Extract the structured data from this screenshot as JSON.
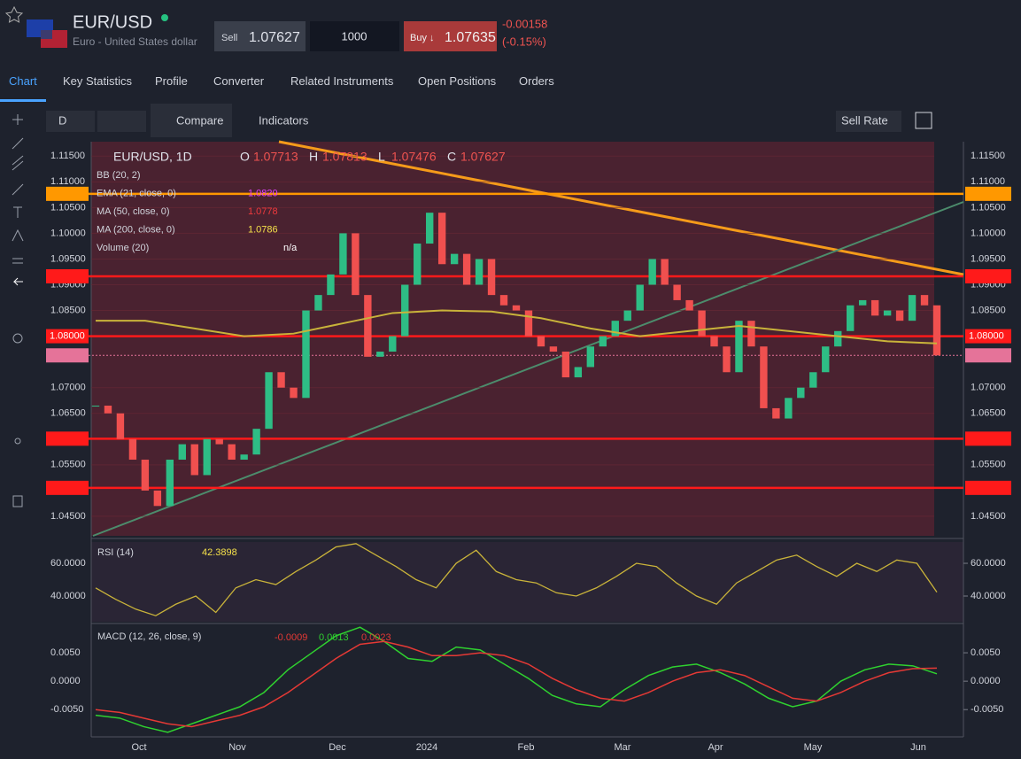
{
  "header": {
    "symbol": "EUR/USD",
    "description": "Euro - United States dollar",
    "sell_label": "Sell",
    "sell_price": 1.07627,
    "quantity": 1000,
    "buy_label": "Buy ↓",
    "buy_price": 1.07635,
    "change": -0.00158,
    "change_percent": "(-0.15%)"
  },
  "tabs": [
    "Chart",
    "Key Statistics",
    "Profile",
    "Converter",
    "Related Instruments",
    "Open Positions",
    "Orders"
  ],
  "toolbar": {
    "interval": "D",
    "compare": "Compare",
    "indicators": "Indicators",
    "rate": "Sell Rate"
  },
  "chart_data": [
    {
      "type": "candlestick",
      "title": "EUR/USD, 1D",
      "ohlc": [
        {
          "label": "O",
          "value": 1.07713
        },
        {
          "label": "H",
          "value": 1.07813
        },
        {
          "label": "L",
          "value": 1.07476
        },
        {
          "label": "C",
          "value": 1.07627
        }
      ],
      "indicators": [
        {
          "name": "BB (20, 2)"
        },
        {
          "name": "EMA (21, close, 0)",
          "value": {
            "value": 1.082,
            "label": "1.0820"
          },
          "color": "#e040fb"
        },
        {
          "name": "MA (50, close, 0)",
          "value": 1.0778,
          "color": "#f0393d"
        },
        {
          "name": "MA (200, close, 0)",
          "value": 1.0786,
          "color": "#f5e14a"
        },
        {
          "name": "Volume (20)",
          "value": "n/a",
          "color": "#ffffff"
        }
      ],
      "xtick_labels": [
        "Oct",
        "Nov",
        "Dec",
        "2024",
        "Feb",
        "Mar",
        "Apr",
        "May",
        "Jun"
      ],
      "values": [
        1.0665,
        1.065,
        1.06,
        1.056,
        1.05,
        1.047,
        1.056,
        1.059,
        1.053,
        1.06,
        1.059,
        1.056,
        1.057,
        1.062,
        1.073,
        1.07,
        1.068,
        1.085,
        1.088,
        1.092,
        1.1,
        1.088,
        1.076,
        1.077,
        1.08,
        1.09,
        1.098,
        1.104,
        1.094,
        1.096,
        1.09,
        1.095,
        1.088,
        1.086,
        1.085,
        1.08,
        1.078,
        1.077,
        1.072,
        1.074,
        1.078,
        1.08,
        1.083,
        1.085,
        1.09,
        1.095,
        1.09,
        1.087,
        1.085,
        1.08,
        1.078,
        1.073,
        1.083,
        1.078,
        1.066,
        1.064,
        1.068,
        1.07,
        1.073,
        1.078,
        1.081,
        1.086,
        1.087,
        1.084,
        1.085,
        1.083,
        1.088,
        1.086,
        1.07627
      ],
      "ma200": [
        1.083,
        1.083,
        1.0815,
        1.08,
        1.0805,
        1.0825,
        1.0845,
        1.085,
        1.0848,
        1.0835,
        1.0815,
        1.08,
        1.081,
        1.082,
        1.081,
        1.08,
        1.079,
        1.0786
      ],
      "ylim": [
        1.0412,
        1.1178
      ],
      "yticks": [
        {
          "value": 1.115,
          "label": "1.11500"
        },
        {
          "value": 1.11,
          "label": "1.11000"
        },
        {
          "value": 1.105,
          "label": "1.10500"
        },
        {
          "value": 1.1,
          "label": "1.10000"
        },
        {
          "value": 1.095,
          "label": "1.09500"
        },
        {
          "value": 1.09,
          "label": "1.09000"
        },
        {
          "value": 1.085,
          "label": "1.08500"
        },
        {
          "value": 1.07,
          "label": "1.07000"
        },
        {
          "value": 1.065,
          "label": "1.06500"
        },
        {
          "value": 1.055,
          "label": "1.05500"
        },
        {
          "value": 1.045,
          "label": "1.04500"
        }
      ],
      "levels": [
        {
          "value": 1.10767,
          "color": "#ff9800"
        },
        {
          "value": 1.09164,
          "color": "#ff1a1a"
        },
        {
          "value": 1.08,
          "label": "1.08000",
          "color": "#ff1a1a"
        },
        {
          "value": 1.07627,
          "color": "#e57399"
        },
        {
          "value": 1.06008,
          "color": "#ff1a1a"
        },
        {
          "value": 1.05052,
          "color": "#ff1a1a"
        }
      ]
    },
    {
      "type": "line",
      "title": "RSI (14)",
      "value": 42.3898,
      "color": "#c9b33a",
      "values": [
        45,
        38,
        32,
        28,
        35,
        40,
        30,
        45,
        50,
        47,
        55,
        62,
        70,
        72,
        65,
        58,
        50,
        45,
        60,
        68,
        55,
        50,
        48,
        42,
        40,
        45,
        52,
        60,
        58,
        48,
        40,
        35,
        48,
        55,
        62,
        65,
        58,
        52,
        60,
        55,
        62,
        60,
        42.3898
      ],
      "ylim": [
        25.4,
        73
      ],
      "yticks": [
        {
          "value": 60,
          "label": "60.0000"
        },
        {
          "value": 40,
          "label": "40.0000"
        }
      ]
    },
    {
      "type": "line",
      "title": "MACD (12, 26, close, 9)",
      "series": [
        {
          "name": "-0.0009",
          "color": "#e53935"
        },
        {
          "name": "0.0013",
          "color": "#2fd12f",
          "values": [
            -0.006,
            -0.0065,
            -0.008,
            -0.009,
            -0.0075,
            -0.006,
            -0.0045,
            -0.002,
            0.002,
            0.005,
            0.008,
            0.0095,
            0.007,
            0.004,
            0.0035,
            0.006,
            0.0055,
            0.003,
            0.0005,
            -0.0025,
            -0.004,
            -0.0045,
            -0.0015,
            0.001,
            0.0025,
            0.003,
            0.0015,
            -0.0005,
            -0.003,
            -0.0045,
            -0.0035,
            0,
            0.002,
            0.003,
            0.0027,
            0.0013
          ]
        },
        {
          "name": "0.0023",
          "color": "#e53935",
          "values": [
            -0.005,
            -0.0055,
            -0.0065,
            -0.0075,
            -0.008,
            -0.007,
            -0.006,
            -0.0045,
            -0.002,
            0.001,
            0.004,
            0.0065,
            0.007,
            0.006,
            0.0045,
            0.0045,
            0.005,
            0.0045,
            0.003,
            0.0005,
            -0.0015,
            -0.003,
            -0.0035,
            -0.002,
            0,
            0.0015,
            0.002,
            0.001,
            -0.001,
            -0.003,
            -0.0035,
            -0.002,
            0,
            0.0015,
            0.0022,
            0.0023
          ]
        }
      ],
      "ylim": [
        -0.0098,
        0.01
      ],
      "yticks": [
        {
          "value": 0.005,
          "label": "0.0050"
        },
        {
          "value": 0,
          "label": "0.0000"
        },
        {
          "value": -0.005,
          "label": "-0.0050"
        }
      ]
    }
  ]
}
